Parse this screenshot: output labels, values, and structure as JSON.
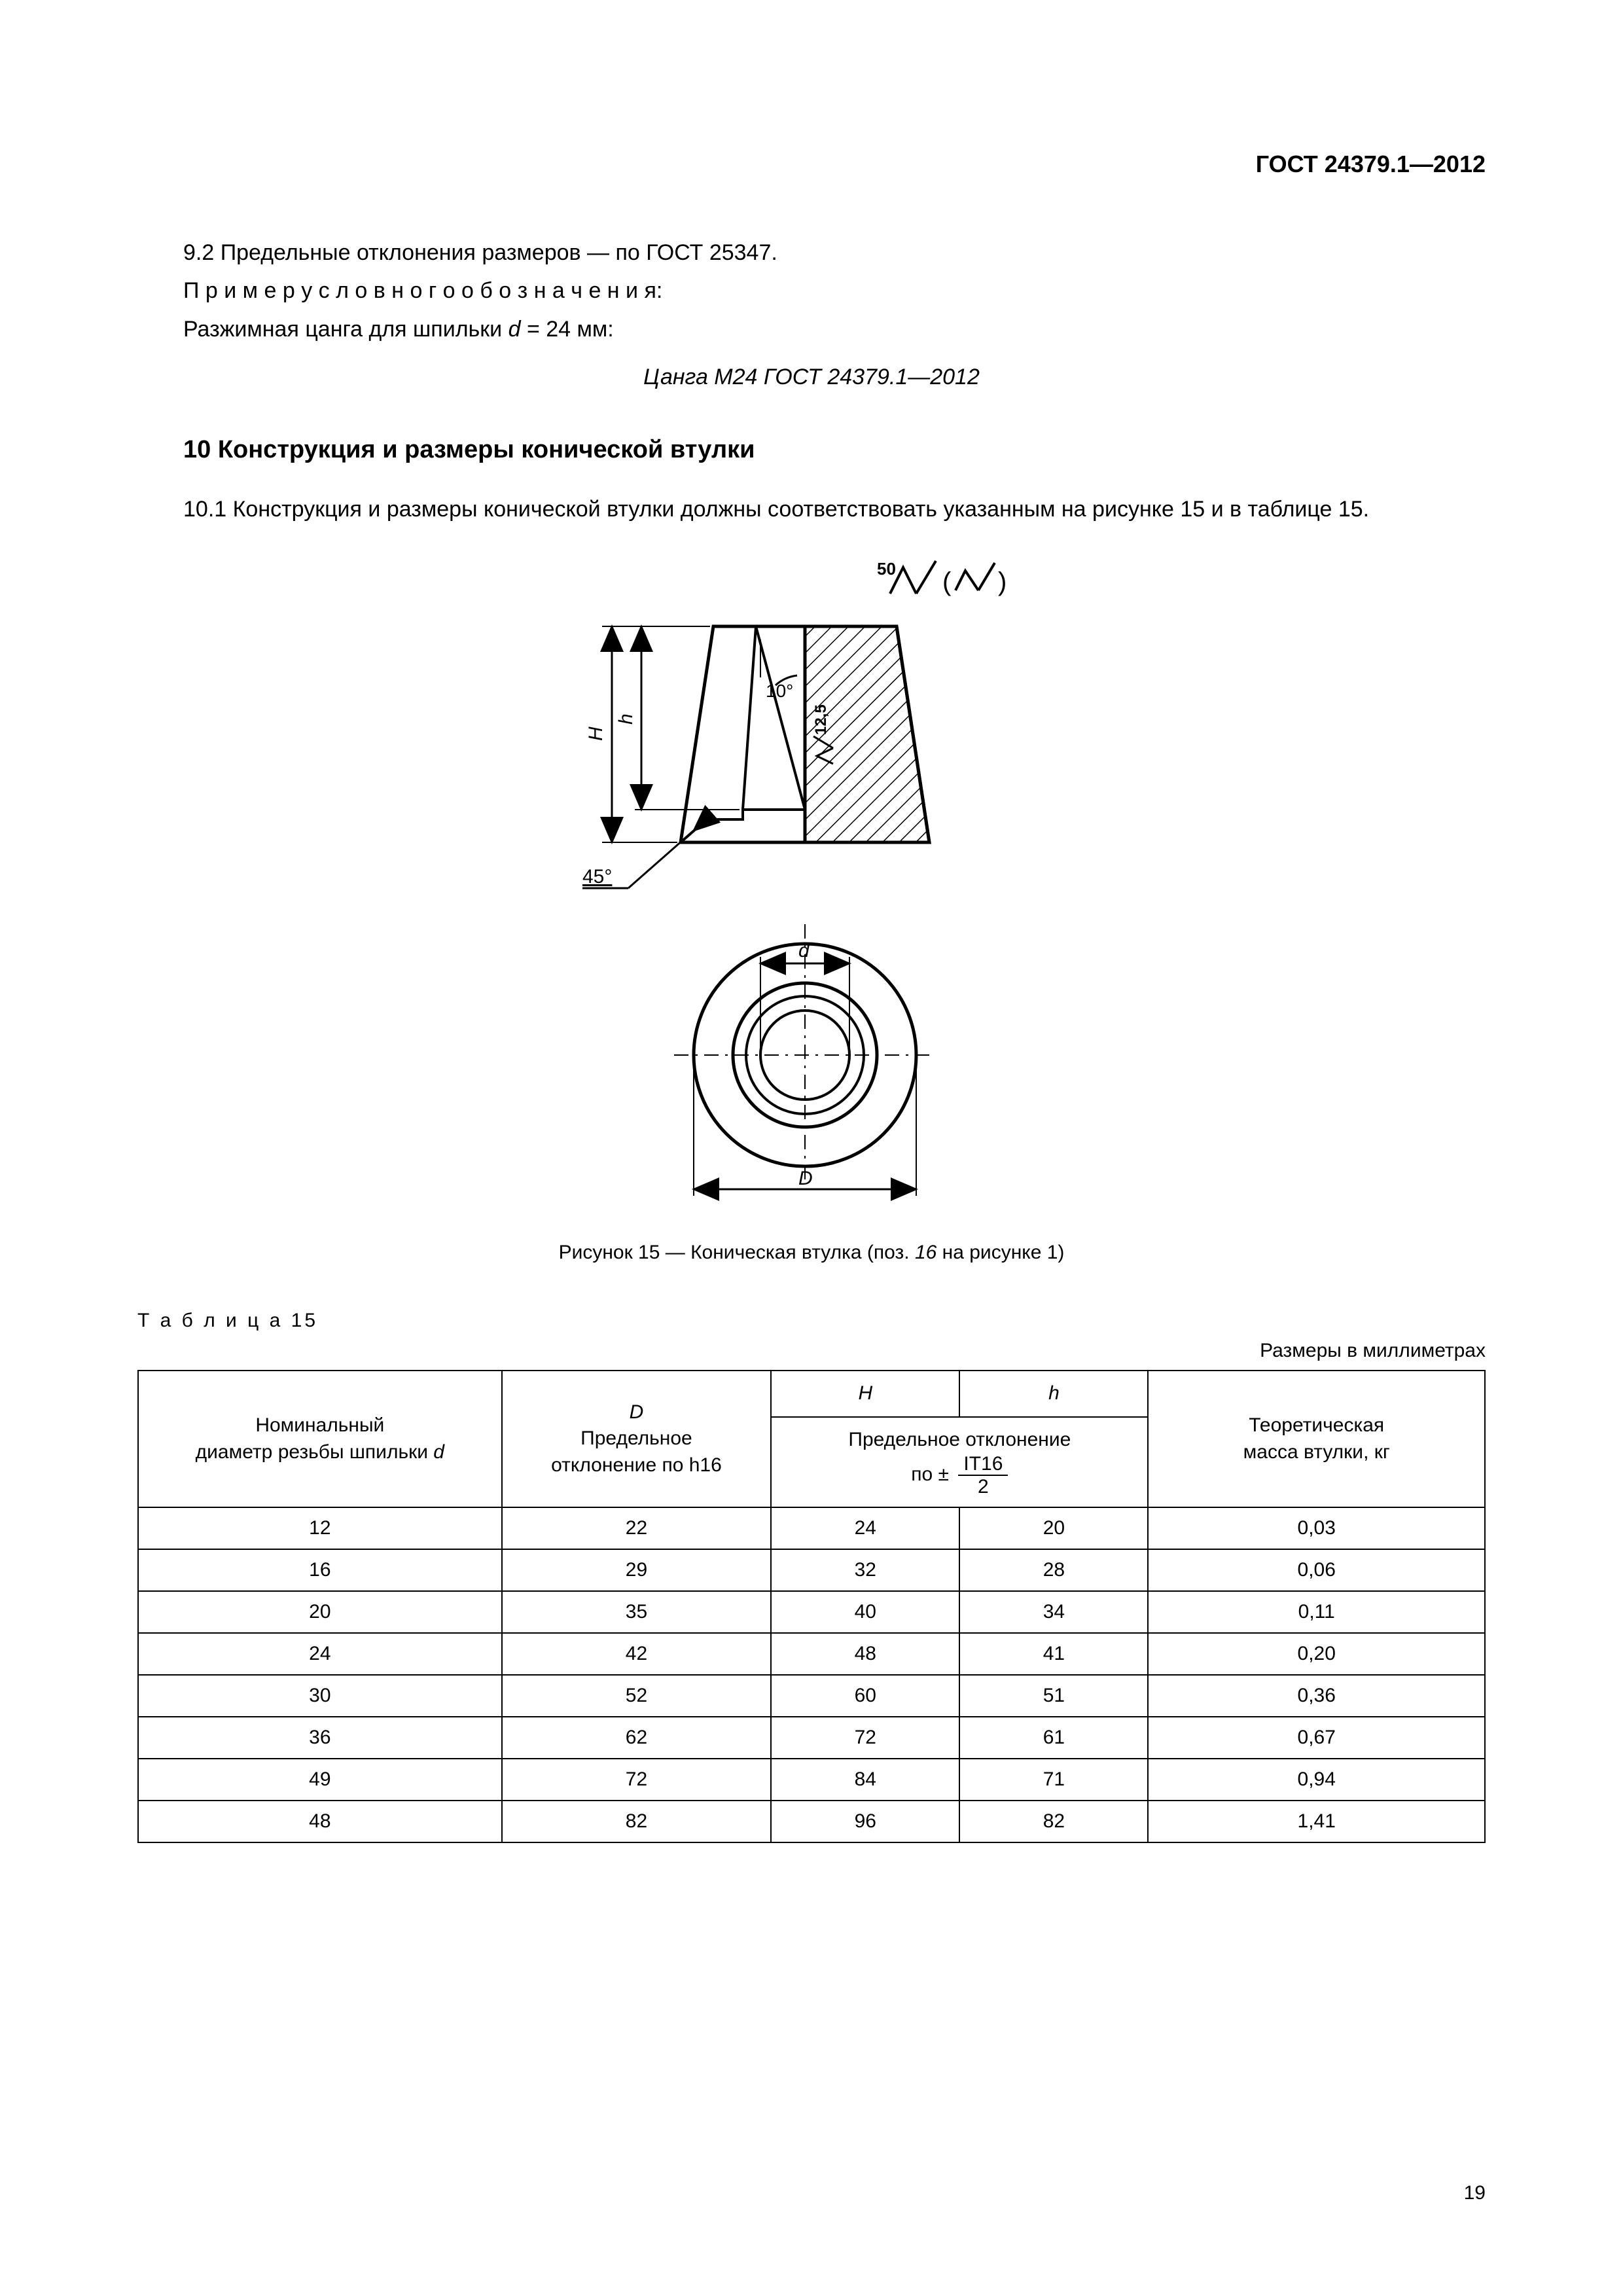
{
  "header": {
    "doc_id": "ГОСТ 24379.1—2012"
  },
  "section9": {
    "line1_pre": "9.2  Предельные отклонения размеров — по ГОСТ 25347.",
    "line2": "П р и м е р   у с л о в н о г о   о б о з н а ч е н и я:",
    "line3_pre": "Разжимная цанга для шпильки ",
    "line3_italic": "d",
    "line3_post": " = 24 мм:",
    "designation": "Цанга М24 ГОСТ 24379.1—2012"
  },
  "section10": {
    "heading": "10  Конструкция и размеры конической втулки",
    "p1": "10.1 Конструкция и размеры конической втулки должны соответствовать указанным на рисунке 15 и в таблице 15."
  },
  "figure": {
    "surface_left": "50",
    "angle_top": "10°",
    "dim_h_big": "H",
    "dim_h_small": "h",
    "surface_inner": "12,5",
    "angle_bottom": "45°",
    "dim_d_small": "d",
    "dim_D_big": "D",
    "caption_pre": "Рисунок 15 — Коническая втулка (поз. ",
    "caption_italic": "16",
    "caption_post": " на рисунке 1)",
    "stroke": "#000000",
    "fill_bg": "#ffffff",
    "hatch_spacing": 14
  },
  "table": {
    "label": "Т а б л и ц а  15",
    "units": "Размеры в миллиметрах",
    "col1_l1": "Номинальный",
    "col1_l2_pre": "диаметр резьбы шпильки ",
    "col1_l2_it": "d",
    "col2_it": "D",
    "col2_l2": "Предельное",
    "col2_l3": "отклонение по h16",
    "col3_it": "H",
    "col4_it": "h",
    "col34_merge_l1": "Предельное отклонение",
    "col34_merge_prefix": "по ± ",
    "col34_merge_num": "IT16",
    "col34_merge_den": "2",
    "col5_l1": "Теоретическая",
    "col5_l2": "масса втулки, кг",
    "rows": [
      [
        "12",
        "22",
        "24",
        "20",
        "0,03"
      ],
      [
        "16",
        "29",
        "32",
        "28",
        "0,06"
      ],
      [
        "20",
        "35",
        "40",
        "34",
        "0,11"
      ],
      [
        "24",
        "42",
        "48",
        "41",
        "0,20"
      ],
      [
        "30",
        "52",
        "60",
        "51",
        "0,36"
      ],
      [
        "36",
        "62",
        "72",
        "61",
        "0,67"
      ],
      [
        "49",
        "72",
        "84",
        "71",
        "0,94"
      ],
      [
        "48",
        "82",
        "96",
        "82",
        "1,41"
      ]
    ]
  },
  "page_number": "19"
}
